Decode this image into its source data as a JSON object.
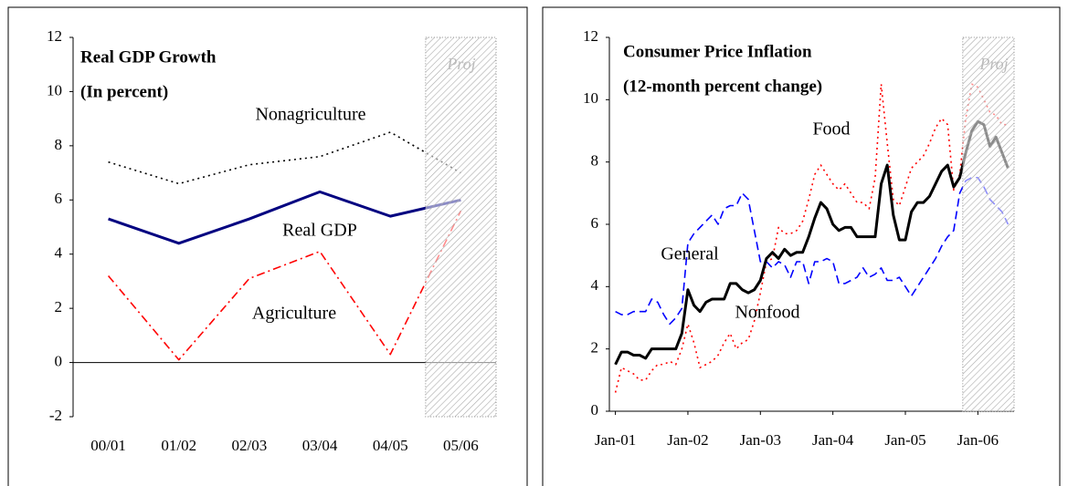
{
  "chart_data": [
    {
      "type": "line",
      "title": "Real GDP Growth",
      "subtitle": "(In percent)",
      "categories": [
        "00/01",
        "01/02",
        "02/03",
        "03/04",
        "04/05",
        "05/06"
      ],
      "series": [
        {
          "name": "Nonagriculture",
          "color": "#000000",
          "style": "dotted",
          "values": [
            7.4,
            6.6,
            7.3,
            7.6,
            8.5,
            7.0
          ]
        },
        {
          "name": "Real GDP",
          "color": "#000080",
          "style": "solid",
          "values": [
            5.3,
            4.4,
            5.3,
            6.3,
            5.4,
            6.0
          ]
        },
        {
          "name": "Agriculture",
          "color": "#ff0000",
          "style": "dash-dot",
          "values": [
            3.2,
            0.1,
            3.1,
            4.1,
            0.3,
            5.6
          ]
        }
      ],
      "ylim": [
        -2,
        12
      ],
      "yticks": [
        -2,
        0,
        2,
        4,
        6,
        8,
        10,
        12
      ],
      "projection_start": "05/06",
      "projection_label": "Proj"
    },
    {
      "type": "line",
      "title": "Consumer Price Inflation",
      "subtitle": "(12-month percent change)",
      "x": [
        "2001-01",
        "2001-02",
        "2001-03",
        "2001-04",
        "2001-05",
        "2001-06",
        "2001-07",
        "2001-08",
        "2001-09",
        "2001-10",
        "2001-11",
        "2001-12",
        "2002-01",
        "2002-02",
        "2002-03",
        "2002-04",
        "2002-05",
        "2002-06",
        "2002-07",
        "2002-08",
        "2002-09",
        "2002-10",
        "2002-11",
        "2002-12",
        "2003-01",
        "2003-02",
        "2003-03",
        "2003-04",
        "2003-05",
        "2003-06",
        "2003-07",
        "2003-08",
        "2003-09",
        "2003-10",
        "2003-11",
        "2003-12",
        "2004-01",
        "2004-02",
        "2004-03",
        "2004-04",
        "2004-05",
        "2004-06",
        "2004-07",
        "2004-08",
        "2004-09",
        "2004-10",
        "2004-11",
        "2004-12",
        "2005-01",
        "2005-02",
        "2005-03",
        "2005-04",
        "2005-05",
        "2005-06",
        "2005-07",
        "2005-08",
        "2005-09",
        "2005-10",
        "2005-11",
        "2005-12",
        "2006-01",
        "2006-02",
        "2006-03",
        "2006-04",
        "2006-05",
        "2006-06"
      ],
      "series": [
        {
          "name": "Food",
          "color": "#ff0000",
          "style": "dotted",
          "values": [
            0.6,
            1.4,
            1.3,
            1.2,
            1.0,
            1.0,
            1.3,
            1.5,
            1.5,
            1.6,
            1.5,
            2.0,
            2.8,
            2.2,
            1.4,
            1.5,
            1.6,
            1.8,
            2.2,
            2.5,
            2.0,
            2.2,
            2.3,
            2.9,
            3.8,
            4.8,
            4.9,
            5.9,
            5.7,
            5.7,
            5.8,
            6.1,
            6.8,
            7.6,
            7.9,
            7.6,
            7.3,
            7.1,
            7.3,
            7.0,
            6.7,
            6.7,
            6.5,
            7.5,
            10.5,
            8.6,
            6.8,
            6.6,
            7.2,
            7.8,
            8.0,
            8.2,
            8.6,
            9.1,
            9.4,
            9.2,
            7.1,
            7.6,
            9.4,
            10.5,
            10.4,
            10.0,
            9.6,
            9.5,
            9.2,
            9.2
          ]
        },
        {
          "name": "Nonfood",
          "color": "#0000ff",
          "style": "dashed",
          "values": [
            3.2,
            3.1,
            3.1,
            3.2,
            3.2,
            3.2,
            3.6,
            3.5,
            3.1,
            2.8,
            3.0,
            3.3,
            5.4,
            5.7,
            5.9,
            6.1,
            6.3,
            6.0,
            6.5,
            6.6,
            6.6,
            7.0,
            6.8,
            5.8,
            4.8,
            4.8,
            4.6,
            4.8,
            4.7,
            4.3,
            4.8,
            4.8,
            4.1,
            4.8,
            4.8,
            4.9,
            4.8,
            4.1,
            4.1,
            4.2,
            4.3,
            4.6,
            4.3,
            4.4,
            4.6,
            4.2,
            4.2,
            4.3,
            4.0,
            3.7,
            4.0,
            4.3,
            4.6,
            4.9,
            5.3,
            5.6,
            5.8,
            7.0,
            7.4,
            7.5,
            7.5,
            7.2,
            6.8,
            6.6,
            6.4,
            6.0
          ]
        },
        {
          "name": "General",
          "color": "#000000",
          "style": "solid",
          "values": [
            1.5,
            1.9,
            1.9,
            1.8,
            1.8,
            1.7,
            2.0,
            2.0,
            2.0,
            2.0,
            2.0,
            2.5,
            3.9,
            3.4,
            3.2,
            3.5,
            3.6,
            3.6,
            3.6,
            4.1,
            4.1,
            3.9,
            3.8,
            3.9,
            4.2,
            4.9,
            5.1,
            4.9,
            5.2,
            5.0,
            5.1,
            5.1,
            5.6,
            6.2,
            6.7,
            6.5,
            6.0,
            5.8,
            5.9,
            5.9,
            5.6,
            5.6,
            5.6,
            5.6,
            7.3,
            7.9,
            6.3,
            5.5,
            5.5,
            6.4,
            6.7,
            6.7,
            6.9,
            7.3,
            7.7,
            7.9,
            7.2,
            7.5,
            8.3,
            9.0,
            9.3,
            9.2,
            8.5,
            8.8,
            8.3,
            7.8
          ]
        }
      ],
      "xlim": [
        "2000-12",
        "2006-07"
      ],
      "xticks": [
        {
          "value": "2001-01",
          "label": "Jan-01"
        },
        {
          "value": "2002-01",
          "label": "Jan-02"
        },
        {
          "value": "2003-01",
          "label": "Jan-03"
        },
        {
          "value": "2004-01",
          "label": "Jan-04"
        },
        {
          "value": "2005-01",
          "label": "Jan-05"
        },
        {
          "value": "2006-01",
          "label": "Jan-06"
        }
      ],
      "ylim": [
        0,
        12
      ],
      "yticks": [
        0,
        2,
        4,
        6,
        8,
        10,
        12
      ],
      "projection_start": "2005-11",
      "projection_label": "Proj"
    }
  ]
}
